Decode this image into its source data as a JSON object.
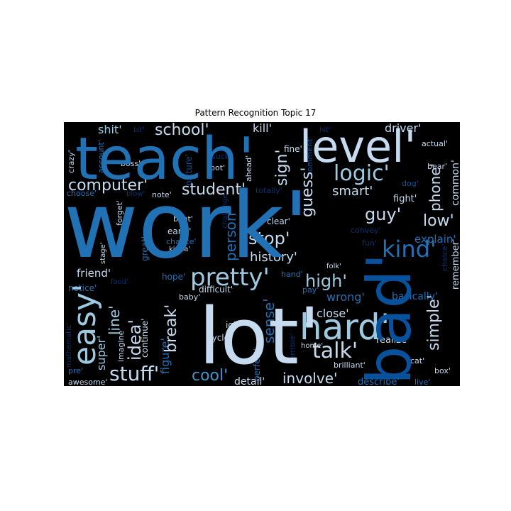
{
  "title": "Pattern Recognition Topic 17",
  "colors": {
    "background": "#000000",
    "pale": "#c6dbef",
    "light": "#9ecae1",
    "mid": "#4292c6",
    "blue": "#2171b5",
    "dark": "#08519c",
    "darkest": "#08306b"
  },
  "words": [
    {
      "text": "work'",
      "tone": "blue"
    },
    {
      "text": "lot'",
      "tone": "pale"
    },
    {
      "text": "teach'",
      "tone": "blue"
    },
    {
      "text": "bad'",
      "tone": "dark"
    },
    {
      "text": "level'",
      "tone": "pale"
    },
    {
      "text": "hard'",
      "tone": "light"
    },
    {
      "text": "logic'",
      "tone": "light"
    },
    {
      "text": "easy'",
      "tone": "light"
    },
    {
      "text": "pretty'",
      "tone": "light"
    },
    {
      "text": "stuff'",
      "tone": "pale"
    },
    {
      "text": "kind'",
      "tone": "blue"
    },
    {
      "text": "talk'",
      "tone": "pale"
    },
    {
      "text": "computer'",
      "tone": "pale"
    },
    {
      "text": "student'",
      "tone": "pale"
    },
    {
      "text": "school'",
      "tone": "pale"
    },
    {
      "text": "guy'",
      "tone": "pale"
    },
    {
      "text": "stop'",
      "tone": "pale"
    },
    {
      "text": "high'",
      "tone": "light"
    },
    {
      "text": "cool'",
      "tone": "mid"
    },
    {
      "text": "involve'",
      "tone": "pale"
    },
    {
      "text": "idea'",
      "tone": "pale"
    },
    {
      "text": "break'",
      "tone": "pale"
    },
    {
      "text": "guess'",
      "tone": "pale"
    },
    {
      "text": "sign'",
      "tone": "pale"
    },
    {
      "text": "low'",
      "tone": "pale"
    },
    {
      "text": "phone'",
      "tone": "pale"
    },
    {
      "text": "simple'",
      "tone": "pale"
    },
    {
      "text": "person'",
      "tone": "blue"
    },
    {
      "text": "line'",
      "tone": "light"
    },
    {
      "text": "sense'",
      "tone": "blue"
    },
    {
      "text": "history'",
      "tone": "pale"
    },
    {
      "text": "smart'",
      "tone": "pale"
    },
    {
      "text": "driver'",
      "tone": "pale"
    },
    {
      "text": "kill'",
      "tone": "pale"
    },
    {
      "text": "shit'",
      "tone": "light"
    },
    {
      "text": "wrong'",
      "tone": "blue"
    },
    {
      "text": "close'",
      "tone": "pale"
    },
    {
      "text": "figure'",
      "tone": "blue"
    },
    {
      "text": "super'",
      "tone": "light"
    },
    {
      "text": "friend'",
      "tone": "pale"
    },
    {
      "text": "explain'",
      "tone": "blue"
    },
    {
      "text": "common'",
      "tone": "pale"
    },
    {
      "text": "remember'",
      "tone": "pale"
    },
    {
      "text": "basically'",
      "tone": "blue"
    },
    {
      "text": "realize'",
      "tone": "pale"
    },
    {
      "text": "fight'",
      "tone": "pale"
    },
    {
      "text": "detail'",
      "tone": "pale"
    },
    {
      "text": "describe'",
      "tone": "blue"
    },
    {
      "text": "early'",
      "tone": "pale"
    },
    {
      "text": "difficult'",
      "tone": "pale"
    },
    {
      "text": "clear'",
      "tone": "pale"
    },
    {
      "text": "perfect'",
      "tone": "blue"
    },
    {
      "text": "continue'",
      "tone": "pale"
    },
    {
      "text": "cycle'",
      "tone": "pale"
    },
    {
      "text": "iq'",
      "tone": "pale"
    },
    {
      "text": "beat'",
      "tone": "pale"
    },
    {
      "text": "hope'",
      "tone": "blue"
    },
    {
      "text": "notice'",
      "tone": "blue"
    },
    {
      "text": "note'",
      "tone": "pale"
    },
    {
      "text": "actual'",
      "tone": "pale"
    },
    {
      "text": "fine'",
      "tone": "pale"
    },
    {
      "text": "bear'",
      "tone": "pale"
    },
    {
      "text": "boss'",
      "tone": "pale"
    },
    {
      "text": "account'",
      "tone": "blue"
    },
    {
      "text": "crazy'",
      "tone": "pale"
    },
    {
      "text": "choose'",
      "tone": "blue"
    },
    {
      "text": "forget'",
      "tone": "pale"
    },
    {
      "text": "stage'",
      "tone": "pale"
    },
    {
      "text": "great'",
      "tone": "blue"
    },
    {
      "text": "chance'",
      "tone": "blue"
    },
    {
      "text": "kinda'",
      "tone": "pale"
    },
    {
      "text": "baby'",
      "tone": "pale"
    },
    {
      "text": "folk'",
      "tone": "pale"
    },
    {
      "text": "hand'",
      "tone": "blue"
    },
    {
      "text": "pay'",
      "tone": "blue"
    },
    {
      "text": "home'",
      "tone": "pale"
    },
    {
      "text": "brilliant'",
      "tone": "pale"
    },
    {
      "text": "cat'",
      "tone": "pale"
    },
    {
      "text": "box'",
      "tone": "pale"
    },
    {
      "text": "live'",
      "tone": "blue"
    },
    {
      "text": "awesome'",
      "tone": "pale"
    },
    {
      "text": "pre'",
      "tone": "blue"
    },
    {
      "text": "imagine'",
      "tone": "pale"
    },
    {
      "text": "mathematic'",
      "tone": "darkest"
    },
    {
      "text": "food'",
      "tone": "darkest"
    },
    {
      "text": "picture'",
      "tone": "dark"
    },
    {
      "text": "suck'",
      "tone": "darkest"
    },
    {
      "text": "bot'",
      "tone": "pale"
    },
    {
      "text": "ahead'",
      "tone": "pale"
    },
    {
      "text": "comment'",
      "tone": "dark"
    },
    {
      "text": "dog'",
      "tone": "dark"
    },
    {
      "text": "totally'",
      "tone": "darkest"
    },
    {
      "text": "challenge'",
      "tone": "darkest"
    },
    {
      "text": "convey'",
      "tone": "darkest"
    },
    {
      "text": "fun'",
      "tone": "darkest"
    },
    {
      "text": "choice'",
      "tone": "darkest"
    },
    {
      "text": "terrible'",
      "tone": "darkest"
    },
    {
      "text": "hit'",
      "tone": "darkest"
    },
    {
      "text": "bit'",
      "tone": "darkest"
    },
    {
      "text": "blow'",
      "tone": "darkest"
    }
  ]
}
